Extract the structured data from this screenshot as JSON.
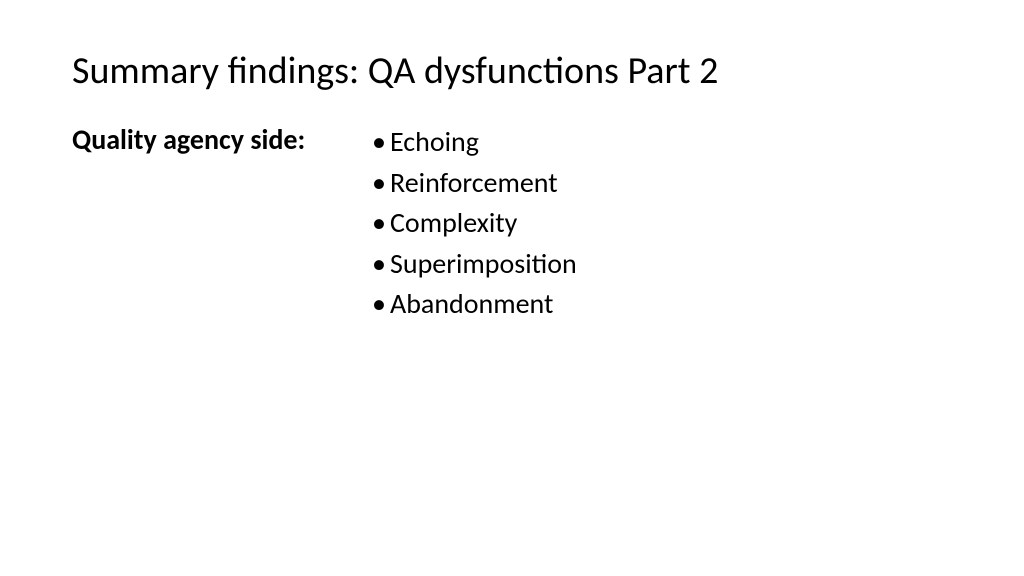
{
  "slide": {
    "title": "Summary findings: QA dysfunctions Part 2",
    "subtitle": "Quality agency side:",
    "bullets": [
      "Echoing",
      "Reinforcement",
      "Complexity",
      "Superimposition",
      "Abandonment"
    ],
    "style": {
      "background_color": "#ffffff",
      "text_color": "#000000",
      "title_fontsize": 38,
      "title_weight": 400,
      "subtitle_fontsize": 28,
      "subtitle_weight": 700,
      "bullet_fontsize": 28,
      "bullet_weight": 400,
      "font_family": "Calibri"
    }
  }
}
